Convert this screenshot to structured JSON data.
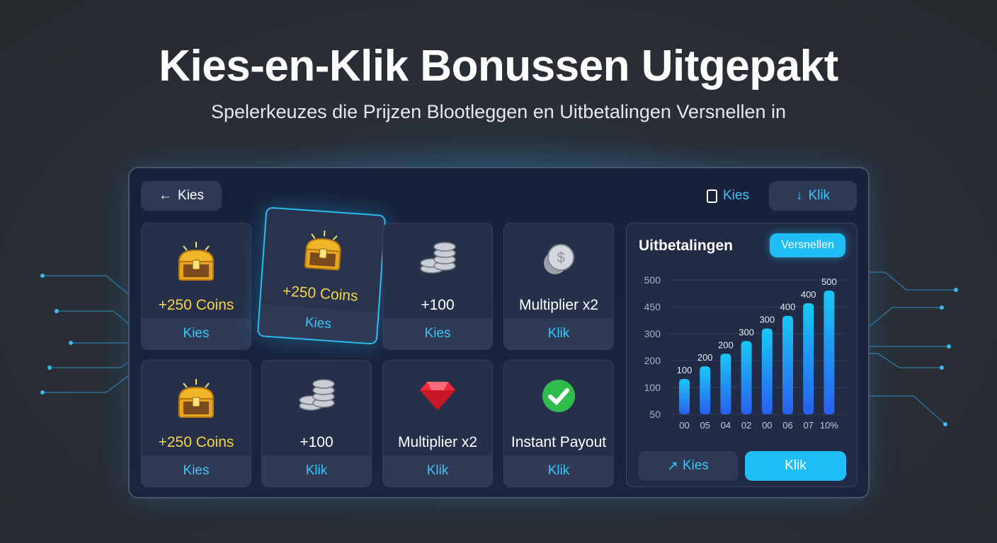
{
  "title": "Kies-en-Klik Bonussen Uitgepakt",
  "subtitle": "Spelerkeuzes die Prijzen Blootleggen en Uitbetalingen Versnellen in",
  "toolbar": {
    "back_label": "Kies",
    "kies_label": "Kies",
    "klik_label": "Klik"
  },
  "cards": [
    {
      "icon": "treasure-chest",
      "label": "+250 Coins",
      "action": "Kies",
      "gold": true
    },
    {
      "icon": "treasure-chest",
      "label": "+250 Coins",
      "action": "Kies",
      "gold": true,
      "selected": true
    },
    {
      "icon": "coin-stack",
      "label": "+100",
      "action": "Kies"
    },
    {
      "icon": "silver-coin",
      "label": "Multiplier x2",
      "action": "Klik"
    },
    {
      "icon": "treasure-chest",
      "label": "+250 Coins",
      "action": "Kies",
      "gold": true
    },
    {
      "icon": "coin-stack",
      "label": "+100",
      "action": "Klik"
    },
    {
      "icon": "red-gem",
      "label": "Multiplier x2",
      "action": "Klik"
    },
    {
      "icon": "check-circle",
      "label": "Instant Payout",
      "action": "Klik"
    }
  ],
  "payouts": {
    "title": "Uitbetalingen",
    "speed_button": "Versnellen",
    "kies_button": "Kies",
    "klik_button": "Klik"
  },
  "chart_data": {
    "type": "bar",
    "title": "Uitbetalingen",
    "categories": [
      "00",
      "05",
      "04",
      "02",
      "00",
      "06",
      "07",
      "10%"
    ],
    "values": [
      100,
      200,
      200,
      300,
      300,
      400,
      400,
      500
    ],
    "y_ticks": [
      "500",
      "450",
      "300",
      "200",
      "100",
      "50"
    ],
    "grid": true,
    "colors": {
      "top": "#19c8f5",
      "bottom": "#2860f0"
    }
  },
  "colors": {
    "accent": "#1fbff5",
    "background": "#2a2f37",
    "panel": "#17213a"
  }
}
